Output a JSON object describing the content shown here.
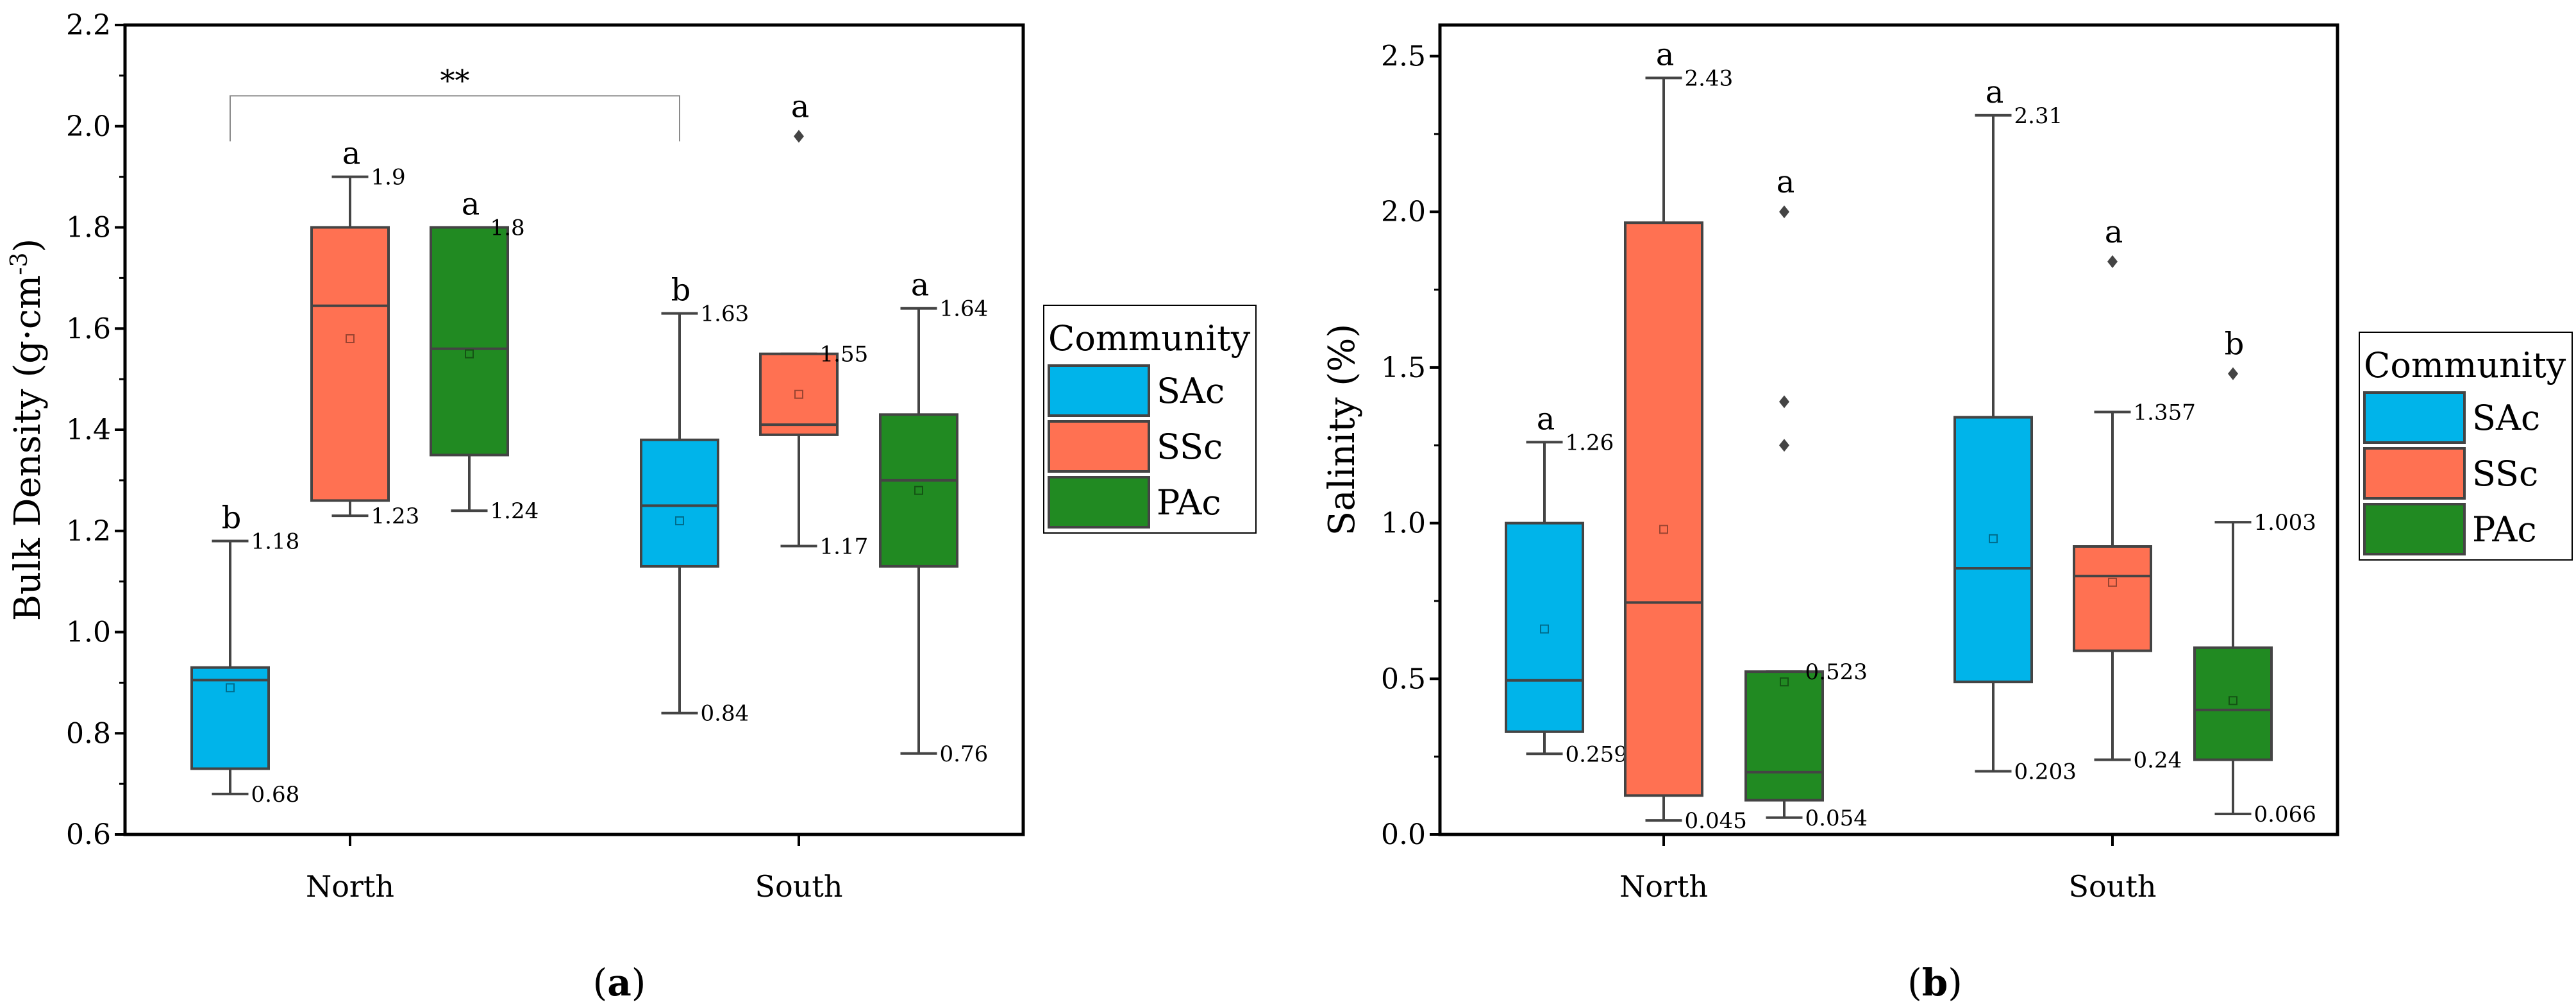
{
  "colors": {
    "SAc": "#00b4ea",
    "SSc": "#ff7152",
    "PAc": "#218a22",
    "line": "#444444",
    "bracket": "#8a8a8a"
  },
  "chart_data": [
    {
      "type": "box",
      "panel_label": "a",
      "ylabel": "Bulk Density (g·cm",
      "ylabel_sup": "-3",
      "ylabel_end": ")",
      "ylim": [
        0.6,
        2.2
      ],
      "yticks": [
        0.6,
        0.8,
        1.0,
        1.2,
        1.4,
        1.6,
        1.8,
        2.0,
        2.2
      ],
      "ytick_labels": [
        "0.6",
        "0.8",
        "1.0",
        "1.2",
        "1.4",
        "1.6",
        "1.8",
        "2.0",
        "2.2"
      ],
      "minor_step": 0.1,
      "categories": [
        "North",
        "South"
      ],
      "legend": {
        "title": "Community",
        "entries": [
          "SAc",
          "SSc",
          "PAc"
        ],
        "placement": "right"
      },
      "groups": [
        {
          "category": "North",
          "series": "SAc",
          "min": 0.68,
          "q1": 0.73,
          "median": 0.905,
          "q3": 0.93,
          "max": 1.18,
          "mean": 0.89,
          "outliers": [],
          "letter": "b",
          "max_label": "1.18",
          "min_label": "0.68"
        },
        {
          "category": "North",
          "series": "SSc",
          "min": 1.23,
          "q1": 1.26,
          "median": 1.645,
          "q3": 1.8,
          "max": 1.9,
          "mean": 1.58,
          "outliers": [],
          "letter": "a",
          "max_label": "1.9",
          "min_label": "1.23"
        },
        {
          "category": "North",
          "series": "PAc",
          "min": 1.24,
          "q1": 1.35,
          "median": 1.56,
          "q3": 1.8,
          "max": 1.8,
          "mean": 1.55,
          "outliers": [],
          "letter": "a",
          "max_label": "1.8",
          "min_label": "1.24"
        },
        {
          "category": "South",
          "series": "SAc",
          "min": 0.84,
          "q1": 1.13,
          "median": 1.25,
          "q3": 1.38,
          "max": 1.63,
          "mean": 1.22,
          "outliers": [],
          "letter": "b",
          "max_label": "1.63",
          "min_label": "0.84"
        },
        {
          "category": "South",
          "series": "SSc",
          "min": 1.17,
          "q1": 1.39,
          "median": 1.41,
          "q3": 1.55,
          "max": 1.55,
          "mean": 1.47,
          "outliers": [
            1.98
          ],
          "letter": "a",
          "max_label": "1.55",
          "min_label": "1.17"
        },
        {
          "category": "South",
          "series": "PAc",
          "min": 0.76,
          "q1": 1.13,
          "median": 1.3,
          "q3": 1.43,
          "max": 1.64,
          "mean": 1.28,
          "outliers": [],
          "letter": "a",
          "max_label": "1.64",
          "min_label": "0.76"
        }
      ],
      "annotations": [
        {
          "type": "bracket",
          "text": "**",
          "from_group": 0,
          "to_group": 3,
          "y": 2.06,
          "leg_y": 1.97
        }
      ]
    },
    {
      "type": "box",
      "panel_label": "b",
      "ylabel": "Salinity (%)",
      "ylim": [
        0.0,
        2.6
      ],
      "yticks": [
        0.0,
        0.5,
        1.0,
        1.5,
        2.0,
        2.5
      ],
      "ytick_labels": [
        "0.0",
        "0.5",
        "1.0",
        "1.5",
        "2.0",
        "2.5"
      ],
      "minor_step": 0.25,
      "categories": [
        "North",
        "South"
      ],
      "legend": {
        "title": "Community",
        "entries": [
          "SAc",
          "SSc",
          "PAc"
        ],
        "placement": "right"
      },
      "groups": [
        {
          "category": "North",
          "series": "SAc",
          "min": 0.259,
          "q1": 0.33,
          "median": 0.495,
          "q3": 1.0,
          "max": 1.26,
          "mean": 0.66,
          "outliers": [],
          "letter": "a",
          "max_label": "1.26",
          "min_label": "0.259"
        },
        {
          "category": "North",
          "series": "SSc",
          "min": 0.045,
          "q1": 0.125,
          "median": 0.745,
          "q3": 1.965,
          "max": 2.43,
          "mean": 0.98,
          "outliers": [],
          "letter": "a",
          "max_label": "2.43",
          "min_label": "0.045"
        },
        {
          "category": "North",
          "series": "PAc",
          "min": 0.054,
          "q1": 0.11,
          "median": 0.2,
          "q3": 0.523,
          "max": 0.523,
          "mean": 0.49,
          "outliers": [
            2.0,
            1.39,
            1.25
          ],
          "letter": "a",
          "max_label": "0.523",
          "min_label": "0.054"
        },
        {
          "category": "South",
          "series": "SAc",
          "min": 0.203,
          "q1": 0.49,
          "median": 0.855,
          "q3": 1.34,
          "max": 2.31,
          "mean": 0.95,
          "outliers": [],
          "letter": "a",
          "max_label": "2.31",
          "min_label": "0.203"
        },
        {
          "category": "South",
          "series": "SSc",
          "min": 0.24,
          "q1": 0.59,
          "median": 0.83,
          "q3": 0.925,
          "max": 1.357,
          "mean": 0.81,
          "outliers": [
            1.84
          ],
          "letter": "a",
          "max_label": "1.357",
          "min_label": "0.24"
        },
        {
          "category": "South",
          "series": "PAc",
          "min": 0.066,
          "q1": 0.24,
          "median": 0.4,
          "q3": 0.6,
          "max": 1.003,
          "mean": 0.43,
          "outliers": [
            1.48
          ],
          "letter": "b",
          "max_label": "1.003",
          "min_label": "0.066"
        }
      ],
      "annotations": []
    }
  ]
}
